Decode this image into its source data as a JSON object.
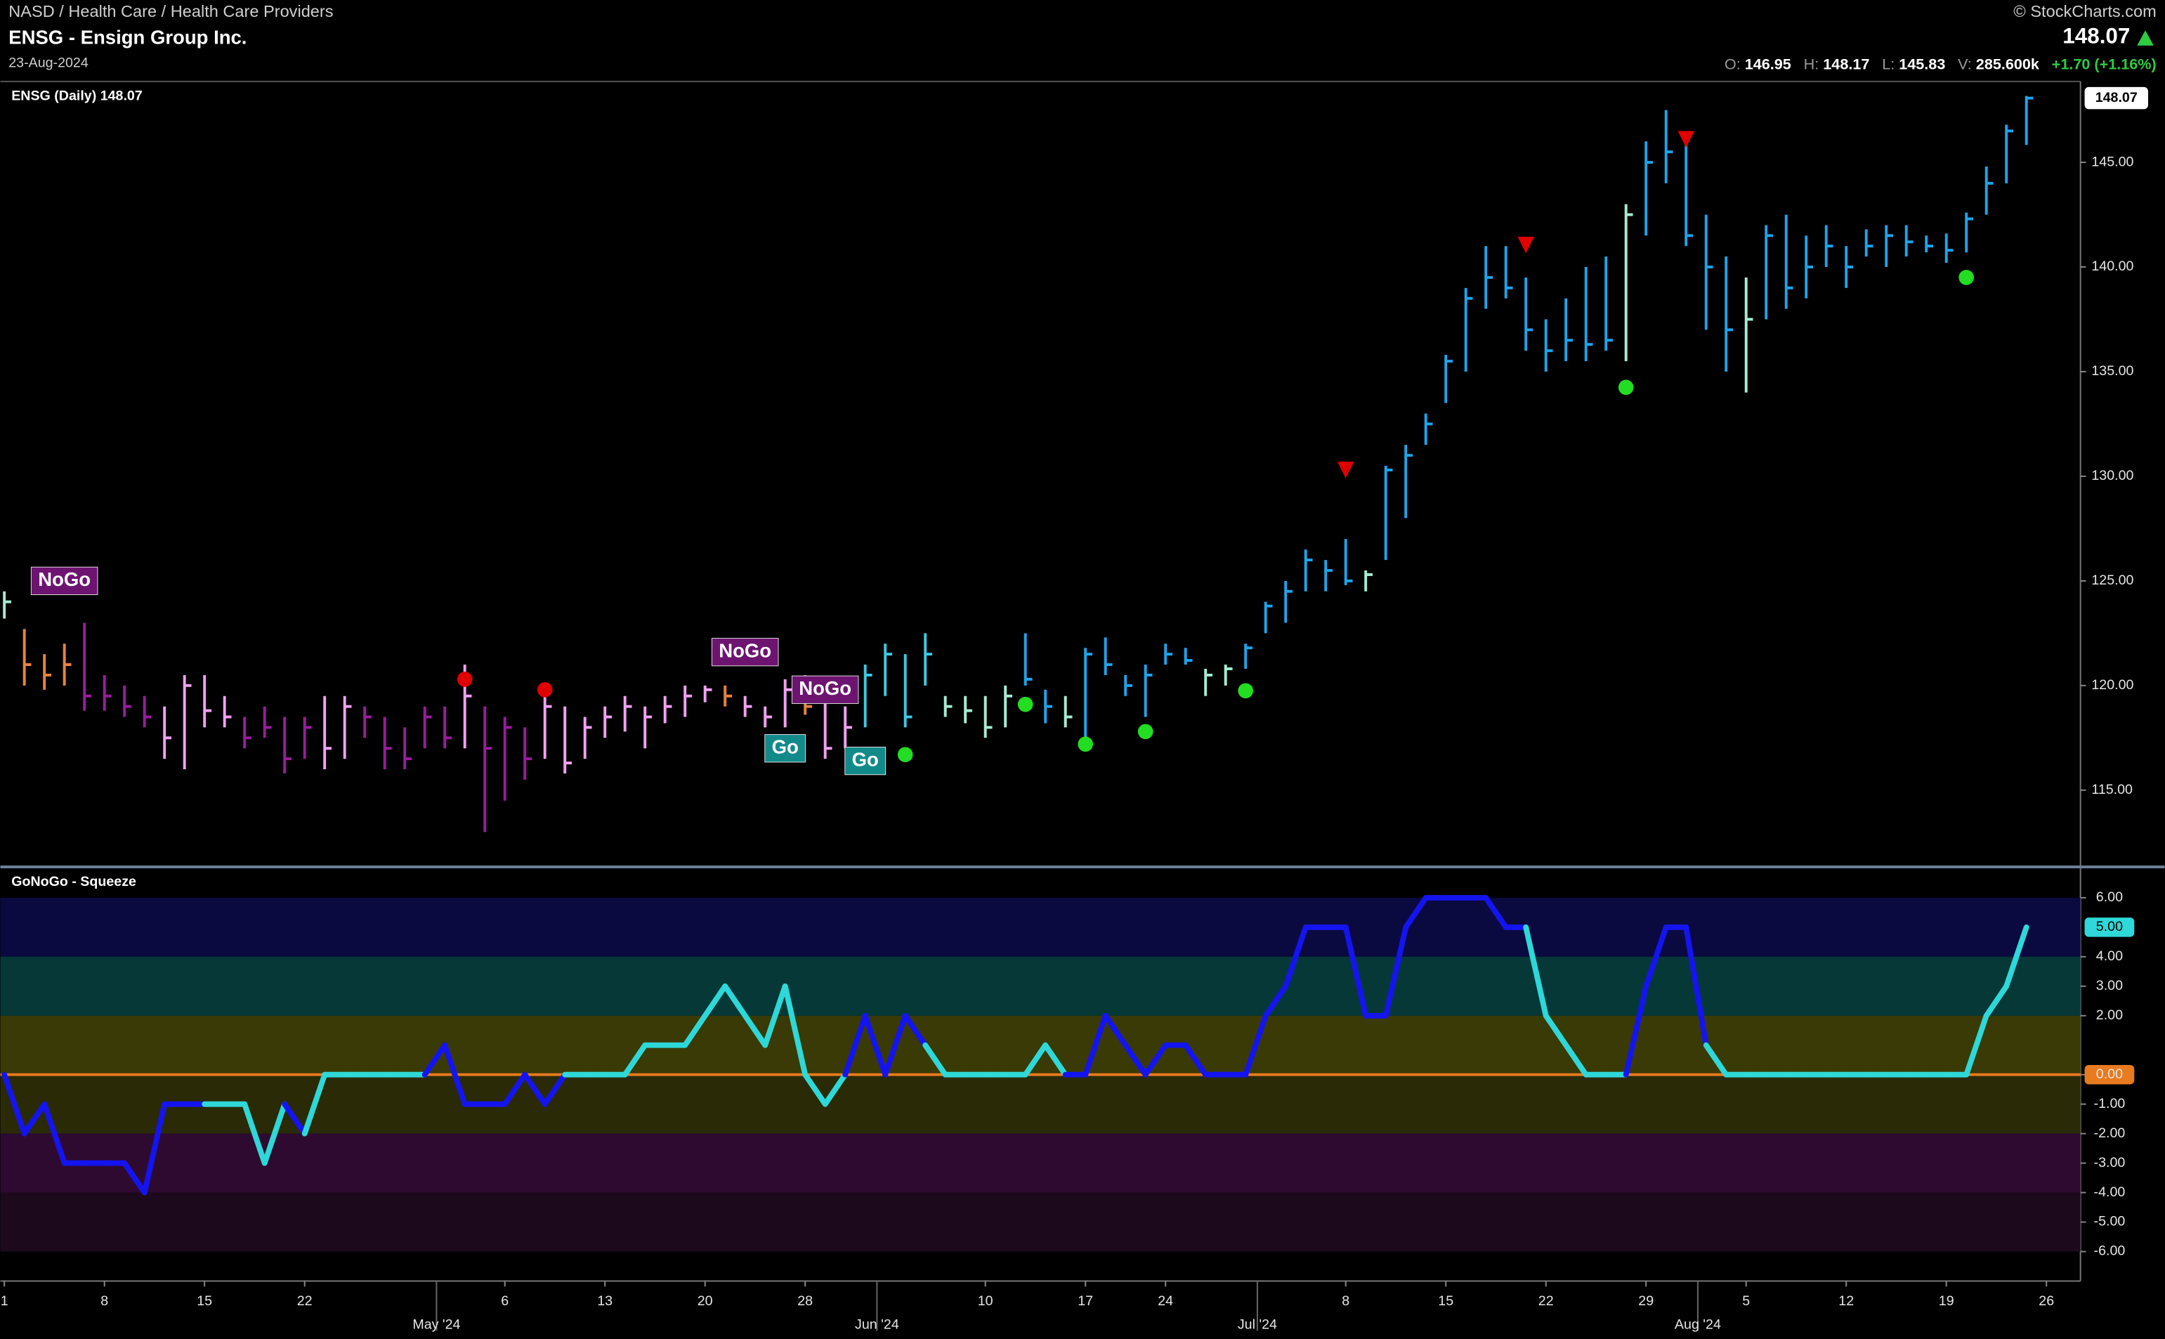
{
  "header": {
    "breadcrumb": "NASD / Health Care / Health Care Providers",
    "title": "ENSG - Ensign Group Inc.",
    "date": "23-Aug-2024",
    "copyright": "© StockCharts.com",
    "ohlc": [
      {
        "label": "O:",
        "value": "146.95"
      },
      {
        "label": "H:",
        "value": "148.17"
      },
      {
        "label": "L:",
        "value": "145.83"
      },
      {
        "label": "V:",
        "value": "285.600k"
      }
    ],
    "change": "+1.70 (+1.16%)"
  },
  "chart_data": [
    {
      "type": "ohlc",
      "title": "ENSG (Daily)",
      "xlim": [
        -0.2,
        103.7
      ],
      "ylim": [
        111.4,
        148.8
      ],
      "yticks": [
        {
          "value": 115,
          "label": "115.00"
        },
        {
          "value": 120,
          "label": "120.00"
        },
        {
          "value": 125,
          "label": "125.00"
        },
        {
          "value": 130,
          "label": "130.00"
        },
        {
          "value": 135,
          "label": "135.00"
        },
        {
          "value": 140,
          "label": "140.00"
        },
        {
          "value": 145,
          "label": "145.00"
        }
      ],
      "high": [
        124.5,
        122.7,
        121.5,
        122,
        123,
        120.5,
        120,
        119.5,
        119,
        120.5,
        120.5,
        119.5,
        118.5,
        119,
        118.5,
        118.5,
        119.5,
        119.5,
        119,
        118.5,
        118,
        119,
        119,
        121,
        119,
        118.5,
        118,
        119.5,
        119,
        118.5,
        119,
        119.5,
        119,
        119.5,
        120,
        120,
        120,
        119.5,
        119,
        120.3,
        120.5,
        119.8,
        119,
        121,
        122,
        121.5,
        122.5,
        119.5,
        119.5,
        119.5,
        120,
        122.5,
        119.8,
        119.5,
        121.8,
        122.3,
        120.5,
        121,
        122,
        121.8,
        120.8,
        121,
        122,
        124,
        125,
        126.5,
        126,
        127,
        125.5,
        130.5,
        131.5,
        133,
        135.8,
        139,
        141,
        141,
        139.5,
        137.5,
        138.5,
        140,
        140.5,
        143,
        146,
        147.5,
        146,
        142.5,
        140.5,
        139.5,
        142,
        142.5,
        141.5,
        142,
        141,
        141.8,
        142,
        142,
        141.5,
        141.6,
        142.6,
        144.8,
        146.8,
        148.17
      ],
      "low": [
        123.2,
        120,
        119.8,
        120,
        118.8,
        118.8,
        118.5,
        118,
        116.5,
        116,
        118,
        118,
        117,
        117.5,
        115.8,
        116.5,
        116,
        116.5,
        117.5,
        116,
        116,
        117,
        117,
        117,
        113,
        114.5,
        115.5,
        116.5,
        115.8,
        116.5,
        117.5,
        117.8,
        117,
        118.2,
        118.5,
        119.2,
        119,
        118.5,
        118,
        118,
        118.6,
        116.5,
        117,
        118,
        119.5,
        118,
        120,
        118.5,
        118.2,
        117.5,
        118,
        120,
        118.2,
        118,
        117.5,
        120.5,
        119.5,
        118.5,
        121,
        121,
        119.5,
        120,
        120.8,
        122.5,
        123,
        124.5,
        124.5,
        124.8,
        124.5,
        126,
        128,
        131.5,
        133.5,
        135,
        138,
        138.5,
        136,
        135,
        135.5,
        135.5,
        136,
        135.5,
        141.5,
        144,
        141,
        137,
        135,
        134,
        137.5,
        138,
        138.5,
        140,
        139,
        140.5,
        140,
        140.5,
        140.7,
        140.2,
        140.7,
        142.5,
        144,
        145.83
      ],
      "close": [
        124,
        121,
        120.5,
        121,
        119.5,
        119.5,
        119,
        118.5,
        117.5,
        120,
        118.8,
        118.5,
        117.5,
        118,
        116.5,
        118,
        117,
        119,
        118.5,
        117,
        116.5,
        118.5,
        117.5,
        119.5,
        117,
        118,
        116.5,
        119,
        116.3,
        118,
        118.5,
        119,
        118.5,
        119,
        119.5,
        119.8,
        119.5,
        119,
        118.5,
        119.8,
        119,
        117,
        118,
        120.5,
        121.5,
        118.5,
        121.5,
        119,
        118.8,
        118,
        119.5,
        120.3,
        119,
        118.5,
        121.5,
        121,
        120,
        120.5,
        121.5,
        121.2,
        120.5,
        120.8,
        121.8,
        123.8,
        124.5,
        126,
        125.5,
        125,
        125.3,
        130.3,
        131,
        132.5,
        135.5,
        138.5,
        139.5,
        139,
        137,
        136,
        136.5,
        136.3,
        136.5,
        142.5,
        145,
        145.5,
        141.5,
        140,
        137,
        137.5,
        141.5,
        139,
        140,
        141,
        140,
        141,
        141.5,
        141.2,
        141,
        140.8,
        142.3,
        144,
        146.5,
        148.07
      ],
      "colors": [
        "#a6ecd2",
        "#e8843c",
        "#e8843c",
        "#e8843c",
        "#9a1c9e",
        "#9a1c9e",
        "#9a1c9e",
        "#9a1c9e",
        "#f2a0f2",
        "#f2a0f2",
        "#f2a0f2",
        "#f2a0f2",
        "#9a1c9e",
        "#9a1c9e",
        "#9a1c9e",
        "#9a1c9e",
        "#f2a0f2",
        "#f2a0f2",
        "#9a1c9e",
        "#9a1c9e",
        "#9a1c9e",
        "#9a1c9e",
        "#9a1c9e",
        "#f2a0f2",
        "#9a1c9e",
        "#9a1c9e",
        "#9a1c9e",
        "#f2a0f2",
        "#f2a0f2",
        "#f2a0f2",
        "#f2a0f2",
        "#f2a0f2",
        "#f2a0f2",
        "#f2a0f2",
        "#f2a0f2",
        "#f2a0f2",
        "#e8843c",
        "#f2a0f2",
        "#f2a0f2",
        "#f2a0f2",
        "#e8843c",
        "#f2a0f2",
        "#f2a0f2",
        "#3cc9e2",
        "#3cc9e2",
        "#3cc9e2",
        "#3cc9e2",
        "#a6ecd2",
        "#a6ecd2",
        "#a6ecd2",
        "#a6ecd2",
        "#1ea4ec",
        "#1ea4ec",
        "#a6ecd2",
        "#1ea4ec",
        "#1ea4ec",
        "#1ea4ec",
        "#1ea4ec",
        "#1ea4ec",
        "#1ea4ec",
        "#a6ecd2",
        "#a6ecd2",
        "#1ea4ec",
        "#1ea4ec",
        "#1ea4ec",
        "#1ea4ec",
        "#1ea4ec",
        "#1ea4ec",
        "#a6ecd2",
        "#1ea4ec",
        "#1ea4ec",
        "#1ea4ec",
        "#1ea4ec",
        "#1ea4ec",
        "#1ea4ec",
        "#1ea4ec",
        "#1ea4ec",
        "#1ea4ec",
        "#1ea4ec",
        "#1ea4ec",
        "#1ea4ec",
        "#a6ecd2",
        "#1ea4ec",
        "#1ea4ec",
        "#1ea4ec",
        "#1ea4ec",
        "#1ea4ec",
        "#a6ecd2",
        "#1ea4ec",
        "#1ea4ec",
        "#1ea4ec",
        "#1ea4ec",
        "#1ea4ec",
        "#1ea4ec",
        "#1ea4ec",
        "#1ea4ec",
        "#1ea4ec",
        "#1ea4ec",
        "#1ea4ec",
        "#1ea4ec",
        "#1ea4ec",
        "#1ea4ec"
      ],
      "annotations": [
        {
          "text": "NoGo",
          "x": 3,
          "y": 125,
          "color": "#6d1470"
        },
        {
          "text": "NoGo",
          "x": 37,
          "y": 121.6,
          "color": "#6d1470"
        },
        {
          "text": "NoGo",
          "x": 41,
          "y": 119.8,
          "color": "#6d1470"
        },
        {
          "text": "Go",
          "x": 39,
          "y": 117,
          "color": "#138a8a"
        },
        {
          "text": "Go",
          "x": 43,
          "y": 116.4,
          "color": "#138a8a"
        }
      ],
      "signals": [
        {
          "shape": "triangle",
          "color": "#e00000",
          "x": 67,
          "y": 130.3
        },
        {
          "shape": "triangle",
          "color": "#e00000",
          "x": 76,
          "y": 141.05
        },
        {
          "shape": "triangle",
          "color": "#e00000",
          "x": 84,
          "y": 146.1
        },
        {
          "shape": "dot",
          "color": "#e00000",
          "x": 23,
          "y": 120.3
        },
        {
          "shape": "dot",
          "color": "#e00000",
          "x": 27,
          "y": 119.8
        },
        {
          "shape": "dot",
          "color": "#e00000",
          "x": 41,
          "y": 119.8
        },
        {
          "shape": "dot",
          "color": "#22dd22",
          "x": 43,
          "y": 116.25
        },
        {
          "shape": "dot",
          "color": "#22dd22",
          "x": 45,
          "y": 116.7
        },
        {
          "shape": "dot",
          "color": "#22dd22",
          "x": 51,
          "y": 119.1
        },
        {
          "shape": "dot",
          "color": "#22dd22",
          "x": 54,
          "y": 117.2
        },
        {
          "shape": "dot",
          "color": "#22dd22",
          "x": 57,
          "y": 117.8
        },
        {
          "shape": "dot",
          "color": "#22dd22",
          "x": 62,
          "y": 119.75
        },
        {
          "shape": "dot",
          "color": "#22dd22",
          "x": 81,
          "y": 134.25
        },
        {
          "shape": "dot",
          "color": "#22dd22",
          "x": 98,
          "y": 139.5
        }
      ]
    },
    {
      "type": "oscillator",
      "title": "GoNoGo - Squeeze",
      "xlim": [
        -0.2,
        103.7
      ],
      "ylim": [
        -7,
        7
      ],
      "yticks": [
        {
          "value": 6,
          "label": "6.00"
        },
        {
          "value": 4,
          "label": "4.00"
        },
        {
          "value": 3,
          "label": "3.00"
        },
        {
          "value": 2,
          "label": "2.00"
        },
        {
          "value": 0,
          "label": "0.00"
        },
        {
          "value": -1,
          "label": "-1.00"
        },
        {
          "value": -2,
          "label": "-2.00"
        },
        {
          "value": -3,
          "label": "-3.00"
        },
        {
          "value": -4,
          "label": "-4.00"
        },
        {
          "value": -5,
          "label": "-5.00"
        },
        {
          "value": -6,
          "label": "-6.00"
        }
      ],
      "bands": [
        {
          "from": 6,
          "to": 4,
          "color": "#0a0a40"
        },
        {
          "from": 4,
          "to": 2,
          "color": "#063838"
        },
        {
          "from": 2,
          "to": 0,
          "color": "#3a3a06"
        },
        {
          "from": 0,
          "to": -2,
          "color": "#2a2a06"
        },
        {
          "from": -2,
          "to": -4,
          "color": "#2e0a30"
        },
        {
          "from": -4,
          "to": -6,
          "color": "#1c0a1c"
        }
      ],
      "zero_line_color": "#e87b1e",
      "values": [
        0,
        -2,
        -1,
        -3,
        -3,
        -3,
        -3,
        -4,
        -1,
        -1,
        -1,
        -1,
        -1,
        -3,
        -1,
        -2,
        0,
        0,
        0,
        0,
        0,
        0,
        1,
        -1,
        -1,
        -1,
        0,
        -1,
        0,
        0,
        0,
        0,
        1,
        1,
        1,
        2,
        3,
        2,
        1,
        3,
        0,
        -1,
        0,
        2,
        0,
        2,
        1,
        0,
        0,
        0,
        0,
        0,
        1,
        0,
        0,
        2,
        1,
        0,
        1,
        1,
        0,
        0,
        0,
        2,
        3,
        5,
        5,
        5,
        2,
        2,
        5,
        6,
        6,
        6,
        6,
        5,
        5,
        2,
        1,
        0,
        0,
        0,
        3,
        5,
        5,
        1,
        0,
        0,
        0,
        0,
        0,
        0,
        0,
        0,
        0,
        0,
        0,
        0,
        0,
        2,
        3,
        5
      ],
      "value_labels_last": "5.00",
      "colors": [
        "#1414f0",
        "#1414f0",
        "#1414f0",
        "#1414f0",
        "#1414f0",
        "#1414f0",
        "#1414f0",
        "#1414f0",
        "#1414f0",
        "#1414f0",
        "#1414f0",
        "#2ed8d8",
        "#2ed8d8",
        "#2ed8d8",
        "#2ed8d8",
        "#1414f0",
        "#2ed8d8",
        "#2ed8d8",
        "#2ed8d8",
        "#2ed8d8",
        "#2ed8d8",
        "#2ed8d8",
        "#1414f0",
        "#1414f0",
        "#1414f0",
        "#1414f0",
        "#1414f0",
        "#1414f0",
        "#1414f0",
        "#2ed8d8",
        "#2ed8d8",
        "#2ed8d8",
        "#2ed8d8",
        "#2ed8d8",
        "#2ed8d8",
        "#2ed8d8",
        "#2ed8d8",
        "#2ed8d8",
        "#2ed8d8",
        "#2ed8d8",
        "#2ed8d8",
        "#2ed8d8",
        "#2ed8d8",
        "#1414f0",
        "#1414f0",
        "#1414f0",
        "#1414f0",
        "#2ed8d8",
        "#2ed8d8",
        "#2ed8d8",
        "#2ed8d8",
        "#2ed8d8",
        "#2ed8d8",
        "#2ed8d8",
        "#1414f0",
        "#1414f0",
        "#1414f0",
        "#1414f0",
        "#1414f0",
        "#1414f0",
        "#1414f0",
        "#1414f0",
        "#1414f0",
        "#1414f0",
        "#1414f0",
        "#1414f0",
        "#1414f0",
        "#1414f0",
        "#1414f0",
        "#1414f0",
        "#1414f0",
        "#1414f0",
        "#1414f0",
        "#1414f0",
        "#1414f0",
        "#1414f0",
        "#1414f0",
        "#2ed8d8",
        "#2ed8d8",
        "#2ed8d8",
        "#2ed8d8",
        "#2ed8d8",
        "#1414f0",
        "#1414f0",
        "#1414f0",
        "#1414f0",
        "#2ed8d8",
        "#2ed8d8",
        "#2ed8d8",
        "#2ed8d8",
        "#2ed8d8",
        "#2ed8d8",
        "#2ed8d8",
        "#2ed8d8",
        "#2ed8d8",
        "#2ed8d8",
        "#2ed8d8",
        "#2ed8d8",
        "#2ed8d8",
        "#2ed8d8",
        "#2ed8d8",
        "#2ed8d8"
      ],
      "xticks": [
        {
          "value": 0,
          "label": "1"
        },
        {
          "value": 5,
          "label": "8"
        },
        {
          "value": 10,
          "label": "15"
        },
        {
          "value": 15,
          "label": "22"
        },
        {
          "value": 25,
          "label": "6"
        },
        {
          "value": 30,
          "label": "13"
        },
        {
          "value": 35,
          "label": "20"
        },
        {
          "value": 40,
          "label": "28"
        },
        {
          "value": 49,
          "label": "10"
        },
        {
          "value": 54,
          "label": "17"
        },
        {
          "value": 58,
          "label": "24"
        },
        {
          "value": 67,
          "label": "8"
        },
        {
          "value": 72,
          "label": "15"
        },
        {
          "value": 77,
          "label": "22"
        },
        {
          "value": 82,
          "label": "29"
        },
        {
          "value": 87,
          "label": "5"
        },
        {
          "value": 92,
          "label": "12"
        },
        {
          "value": 97,
          "label": "19"
        },
        {
          "value": 102,
          "label": "26"
        }
      ],
      "month_ticks": [
        {
          "value": 22,
          "label": "May '24"
        },
        {
          "value": 44,
          "label": "Jun '24"
        },
        {
          "value": 63,
          "label": "Jul '24"
        },
        {
          "value": 85,
          "label": "Aug '24"
        }
      ]
    }
  ]
}
